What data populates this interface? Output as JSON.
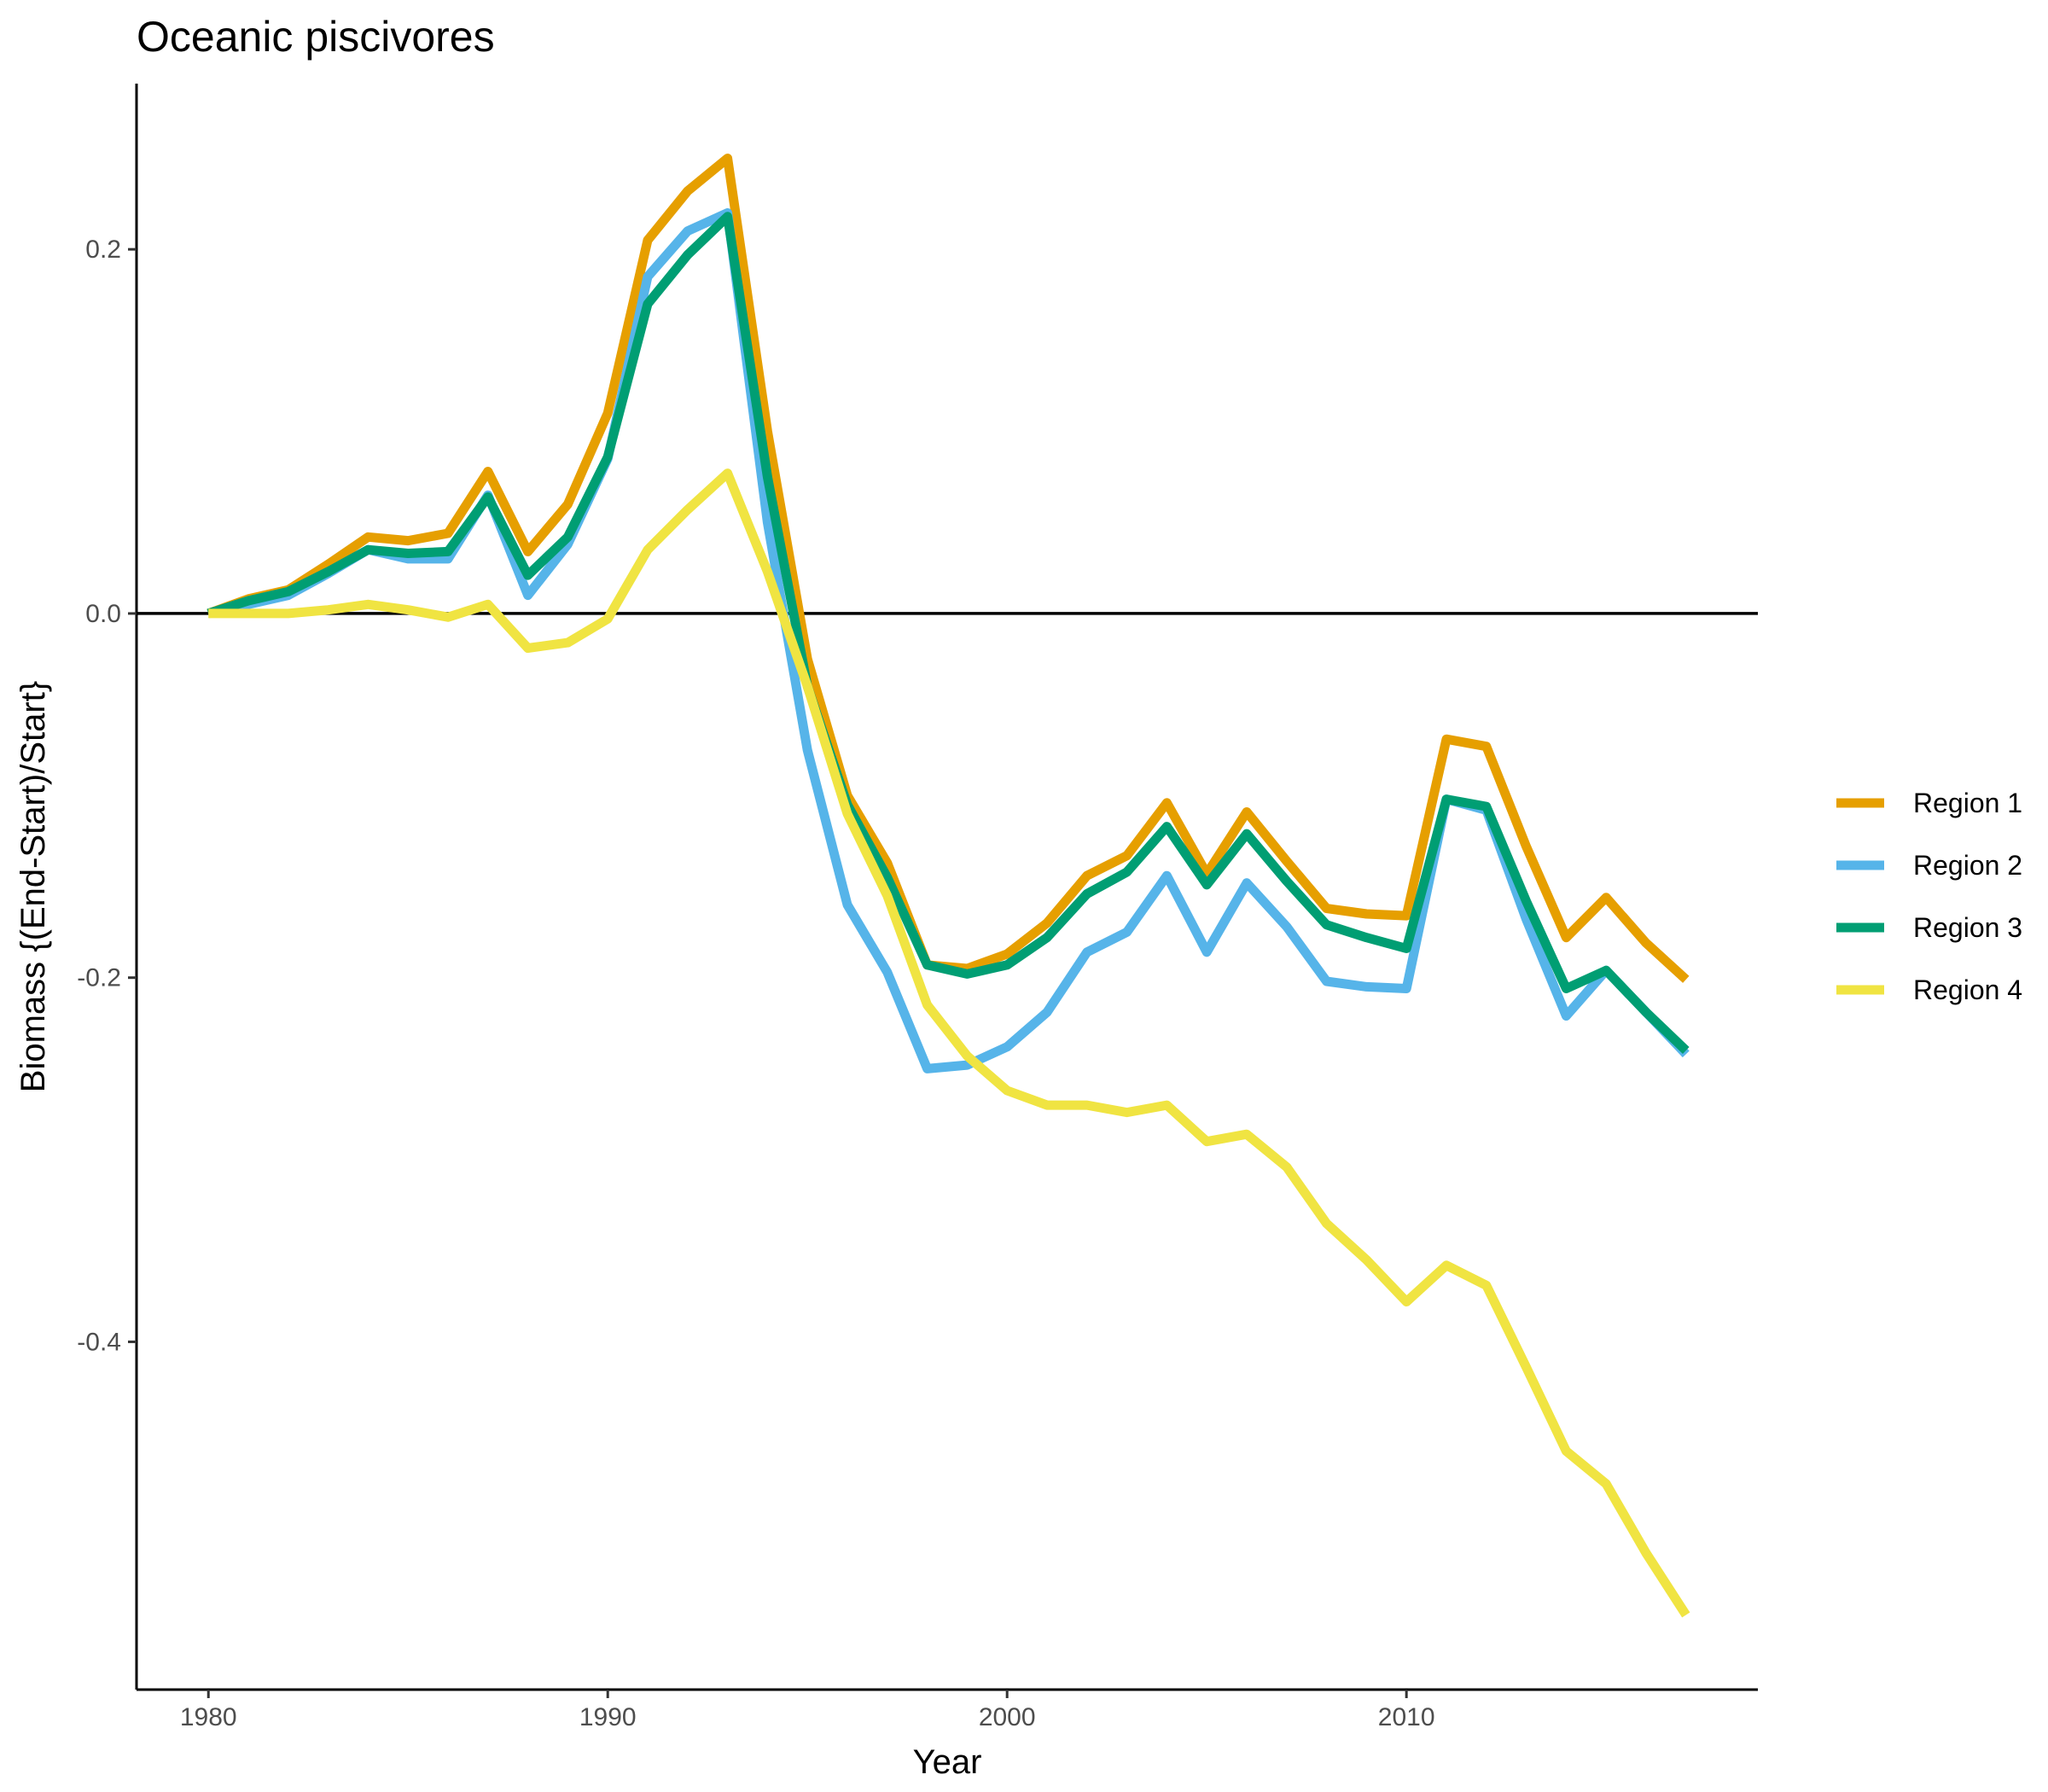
{
  "chart_data": {
    "type": "line",
    "title": "Oceanic piscivores",
    "xlabel": "Year",
    "ylabel": "Biomass {(End-Start)/Start}",
    "xlim": [
      1978.2,
      2018.8
    ],
    "ylim": [
      -0.591,
      0.291
    ],
    "x_ticks": [
      1980,
      1990,
      2000,
      2010
    ],
    "x_tick_labels": [
      "1980",
      "1990",
      "2000",
      "2010"
    ],
    "y_ticks": [
      0.2,
      0.0,
      -0.2,
      -0.4
    ],
    "y_tick_labels": [
      "0.2",
      "0.0",
      "-0.2",
      "-0.4"
    ],
    "hline": 0,
    "grid": false,
    "legend_position": "right",
    "x": [
      1980,
      1981,
      1982,
      1983,
      1984,
      1985,
      1986,
      1987,
      1988,
      1989,
      1990,
      1991,
      1992,
      1993,
      1994,
      1995,
      1996,
      1997,
      1998,
      1999,
      2000,
      2001,
      2002,
      2003,
      2004,
      2005,
      2006,
      2007,
      2008,
      2009,
      2010,
      2011,
      2012,
      2013,
      2014,
      2015,
      2016,
      2017
    ],
    "series": [
      {
        "name": "Region 1",
        "color": "#E69F00",
        "values": [
          0.0,
          0.008,
          0.013,
          0.027,
          0.042,
          0.04,
          0.044,
          0.078,
          0.034,
          0.06,
          0.11,
          0.205,
          0.232,
          0.25,
          0.1,
          -0.025,
          -0.1,
          -0.137,
          -0.193,
          -0.195,
          -0.187,
          -0.17,
          -0.144,
          -0.133,
          -0.104,
          -0.143,
          -0.109,
          -0.136,
          -0.162,
          -0.165,
          -0.166,
          -0.069,
          -0.073,
          -0.128,
          -0.178,
          -0.156,
          -0.181,
          -0.201
        ]
      },
      {
        "name": "Region 2",
        "color": "#56B4E9",
        "values": [
          0.0,
          0.005,
          0.01,
          0.022,
          0.035,
          0.03,
          0.03,
          0.065,
          0.01,
          0.038,
          0.085,
          0.185,
          0.21,
          0.22,
          0.05,
          -0.075,
          -0.16,
          -0.197,
          -0.25,
          -0.248,
          -0.238,
          -0.219,
          -0.186,
          -0.175,
          -0.144,
          -0.186,
          -0.148,
          -0.172,
          -0.202,
          -0.205,
          -0.206,
          -0.102,
          -0.108,
          -0.168,
          -0.221,
          -0.196,
          -0.219,
          -0.242
        ]
      },
      {
        "name": "Region 3",
        "color": "#009E73",
        "values": [
          0.0,
          0.007,
          0.012,
          0.023,
          0.035,
          0.033,
          0.034,
          0.064,
          0.021,
          0.042,
          0.086,
          0.17,
          0.197,
          0.218,
          0.075,
          -0.04,
          -0.105,
          -0.145,
          -0.193,
          -0.198,
          -0.193,
          -0.178,
          -0.154,
          -0.142,
          -0.117,
          -0.149,
          -0.121,
          -0.147,
          -0.171,
          -0.178,
          -0.184,
          -0.102,
          -0.106,
          -0.158,
          -0.206,
          -0.196,
          -0.219,
          -0.24
        ]
      },
      {
        "name": "Region 4",
        "color": "#F0E442",
        "values": [
          0.0,
          0.0,
          0.0,
          0.002,
          0.005,
          0.002,
          -0.002,
          0.005,
          -0.019,
          -0.016,
          -0.003,
          0.035,
          0.057,
          0.077,
          0.023,
          -0.04,
          -0.11,
          -0.155,
          -0.215,
          -0.243,
          -0.262,
          -0.27,
          -0.27,
          -0.274,
          -0.27,
          -0.29,
          -0.286,
          -0.304,
          -0.335,
          -0.355,
          -0.378,
          -0.358,
          -0.369,
          -0.414,
          -0.46,
          -0.478,
          -0.516,
          -0.55
        ]
      }
    ]
  }
}
